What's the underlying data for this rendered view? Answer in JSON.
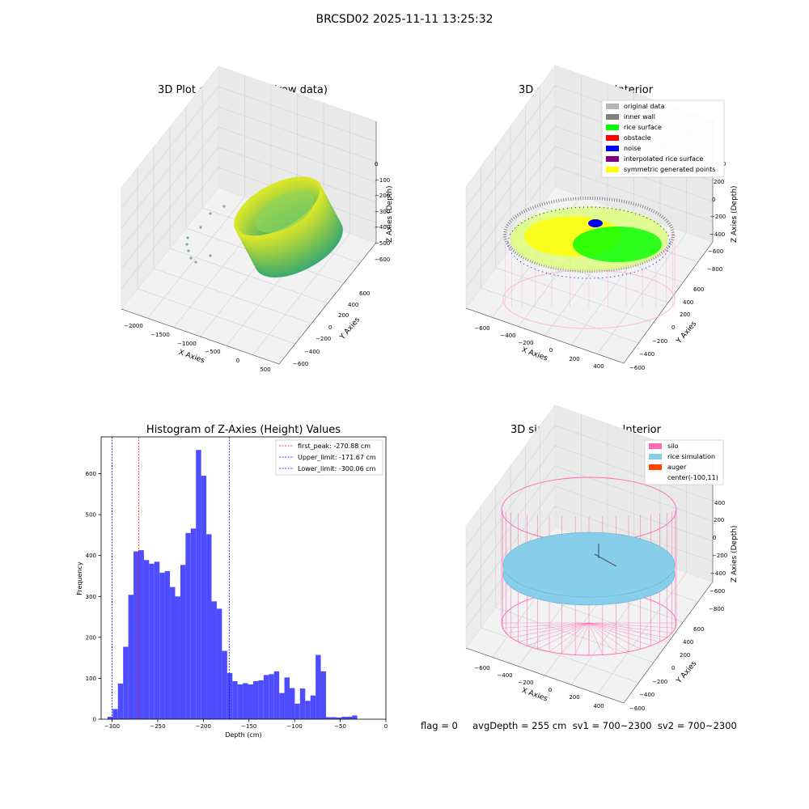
{
  "figure": {
    "title": "BRCSD02 2025-11-11 13:25:32",
    "footer": "flag = 0     avgDepth = 255 cm  sv1 = 700~2300  sv2 = 700~2300"
  },
  "colors": {
    "original_data": "#b4b4b4",
    "inner_wall": "#808080",
    "rice_surface": "#00ff00",
    "obstacle": "#ff0000",
    "noise": "#0000ff",
    "interpolated_rice_surface": "#800080",
    "symmetric_generated_points": "#ffff00",
    "silo": "#ff69b4",
    "rice_simulation": "#87ceeb",
    "auger": "#ff4500",
    "histogram_bar": "#4d4dff"
  },
  "chart_data": [
    {
      "type": "scatter3d",
      "title": "3D Plot of Silo Interior(row data)",
      "xlabel": "X Axies",
      "ylabel": "Y Axies",
      "zlabel": "Z Axies (Depth)",
      "x_ticks": [
        "−2000",
        "−1500",
        "−1000",
        "−500",
        "0",
        "500"
      ],
      "y_ticks": [
        "−600",
        "−400",
        "−200",
        "0",
        "200",
        "400",
        "600"
      ],
      "z_ticks": [
        "−600",
        "−500",
        "−400",
        "−300",
        "−200",
        "−100",
        "0"
      ],
      "colormap": "viridis"
    },
    {
      "type": "scatter3d",
      "title": "3D classify of Silo Interior",
      "xlabel": "X Axies",
      "ylabel": "Y Axies",
      "zlabel": "Z Axies (Depth)",
      "x_ticks": [
        "−600",
        "−400",
        "−200",
        "0",
        "200",
        "400"
      ],
      "y_ticks": [
        "−600",
        "−400",
        "−200",
        "0",
        "200",
        "400",
        "600"
      ],
      "z_ticks": [
        "−800",
        "−600",
        "−400",
        "−200",
        "0",
        "200",
        "400"
      ],
      "legend": [
        "original data",
        "inner wall",
        "rice surface",
        "obstacle",
        "noise",
        "interpolated rice surface",
        "symmetric generated points"
      ],
      "legend_position": "top-right"
    },
    {
      "type": "bar",
      "title": "Histogram of Z-Axies (Height) Values",
      "xlabel": "Depth (cm)",
      "ylabel": "Frequency",
      "xlim": [
        -312,
        0
      ],
      "ylim": [
        0,
        690
      ],
      "x_ticks": [
        -300,
        -250,
        -200,
        -150,
        -100,
        -50,
        0
      ],
      "x_tick_labels": [
        "−300",
        "−250",
        "−200",
        "−150",
        "−100",
        "−50",
        "0"
      ],
      "y_ticks": [
        0,
        100,
        200,
        300,
        400,
        500,
        600
      ],
      "y_tick_labels": [
        "0",
        "100",
        "200",
        "300",
        "400",
        "500",
        "600"
      ],
      "bin_start": -305,
      "bin_width": 5.7,
      "values": [
        6,
        25,
        87,
        177,
        304,
        410,
        413,
        389,
        380,
        385,
        358,
        362,
        323,
        300,
        377,
        455,
        466,
        658,
        595,
        452,
        288,
        270,
        167,
        113,
        93,
        85,
        88,
        85,
        93,
        95,
        108,
        110,
        117,
        64,
        102,
        76,
        38,
        75,
        45,
        58,
        157,
        117,
        5,
        5,
        4,
        6,
        6,
        9
      ],
      "reference_lines": [
        {
          "label": "first_peak: -270.88 cm",
          "value": -270.88,
          "color": "#ff0000"
        },
        {
          "label": "Upper_limit: -171.67 cm",
          "value": -171.67,
          "color": "#0000ff"
        },
        {
          "label": "Lower_limit: -300.06 cm",
          "value": -300.06,
          "color": "#0000ff"
        }
      ],
      "legend_position": "top-right"
    },
    {
      "type": "surface3d",
      "title": "3D simulation of Silo Interior",
      "xlabel": "X Axies",
      "ylabel": "Y Axies",
      "zlabel": "Z Axies (Depth)",
      "x_ticks": [
        "−600",
        "−400",
        "−200",
        "0",
        "200",
        "400"
      ],
      "y_ticks": [
        "−600",
        "−400",
        "−200",
        "0",
        "200",
        "400",
        "600"
      ],
      "z_ticks": [
        "−800",
        "−600",
        "−400",
        "−200",
        "0",
        "200",
        "400"
      ],
      "legend": [
        "silo",
        "rice simulation",
        "auger",
        "center(-100,11)"
      ],
      "legend_position": "top-right"
    }
  ]
}
